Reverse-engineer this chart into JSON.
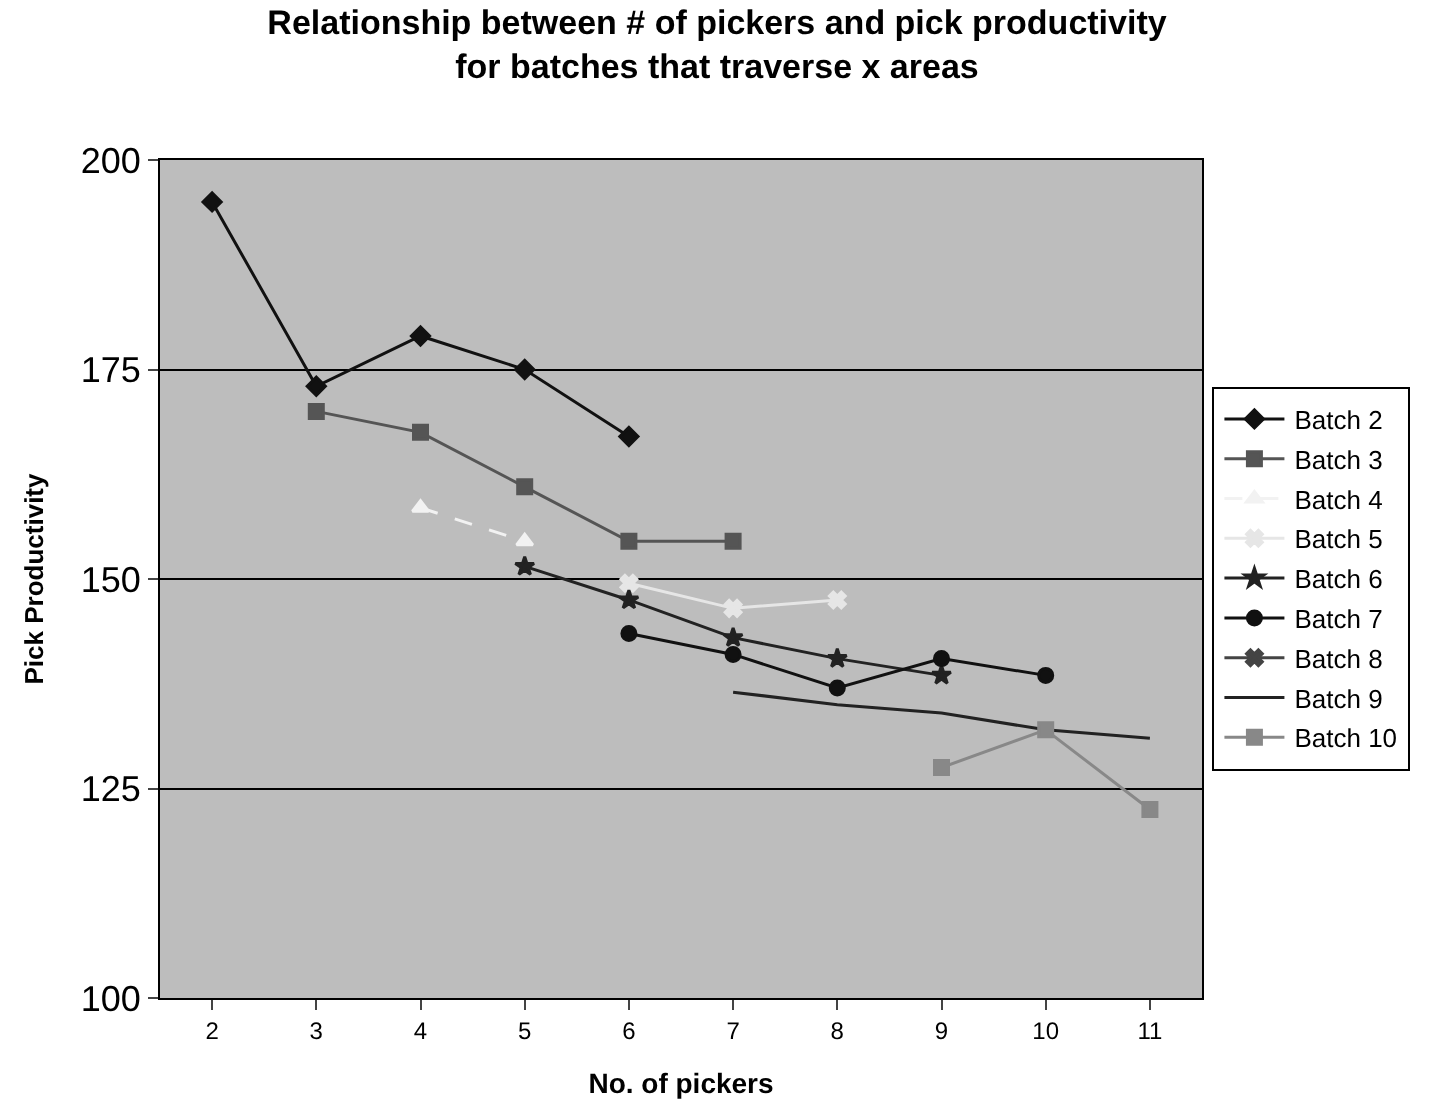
{
  "chart_data": {
    "type": "line",
    "title": "Relationship between # of pickers and pick productivity for batches that traverse x areas",
    "xlabel": "No. of pickers",
    "ylabel": "Pick Productivity",
    "categories": [
      "2",
      "3",
      "4",
      "5",
      "6",
      "7",
      "8",
      "9",
      "10",
      "11"
    ],
    "ylim": [
      100,
      200
    ],
    "yticks": [
      100,
      125,
      150,
      175,
      200
    ],
    "grid": "y",
    "legend": "right",
    "series": [
      {
        "name": "Batch 2",
        "color": "#111111",
        "marker": "diamond",
        "values": [
          195,
          173,
          179,
          175,
          167,
          null,
          null,
          null,
          null,
          null
        ]
      },
      {
        "name": "Batch 3",
        "color": "#555555",
        "marker": "square",
        "values": [
          null,
          170,
          167.5,
          161,
          154.5,
          154.5,
          null,
          null,
          null,
          null
        ]
      },
      {
        "name": "Batch 4",
        "color": "#f2f2f2",
        "marker": "triangle",
        "line_style": "dashed",
        "values": [
          null,
          null,
          158.5,
          154.5,
          null,
          null,
          null,
          null,
          null,
          null
        ]
      },
      {
        "name": "Batch 5",
        "color": "#e6e6e6",
        "marker": "cross",
        "values": [
          null,
          null,
          null,
          null,
          149.5,
          146.5,
          147.5,
          null,
          null,
          null
        ]
      },
      {
        "name": "Batch 6",
        "color": "#222222",
        "marker": "star",
        "values": [
          null,
          null,
          null,
          151.5,
          147.5,
          143,
          140.5,
          138.5,
          null,
          null
        ]
      },
      {
        "name": "Batch 7",
        "color": "#111111",
        "marker": "circle",
        "values": [
          null,
          null,
          null,
          null,
          143.5,
          141,
          137,
          140.5,
          138.5,
          null
        ]
      },
      {
        "name": "Batch 8",
        "color": "#444444",
        "marker": "cross",
        "values": [
          null,
          null,
          null,
          null,
          null,
          null,
          null,
          null,
          null,
          null
        ]
      },
      {
        "name": "Batch 9",
        "color": "#222222",
        "marker": "none",
        "values": [
          null,
          null,
          null,
          null,
          null,
          136.5,
          135,
          134,
          132,
          131
        ]
      },
      {
        "name": "Batch 10",
        "color": "#888888",
        "marker": "square",
        "values": [
          null,
          null,
          null,
          null,
          null,
          null,
          null,
          127.5,
          132,
          122.5
        ]
      }
    ]
  }
}
